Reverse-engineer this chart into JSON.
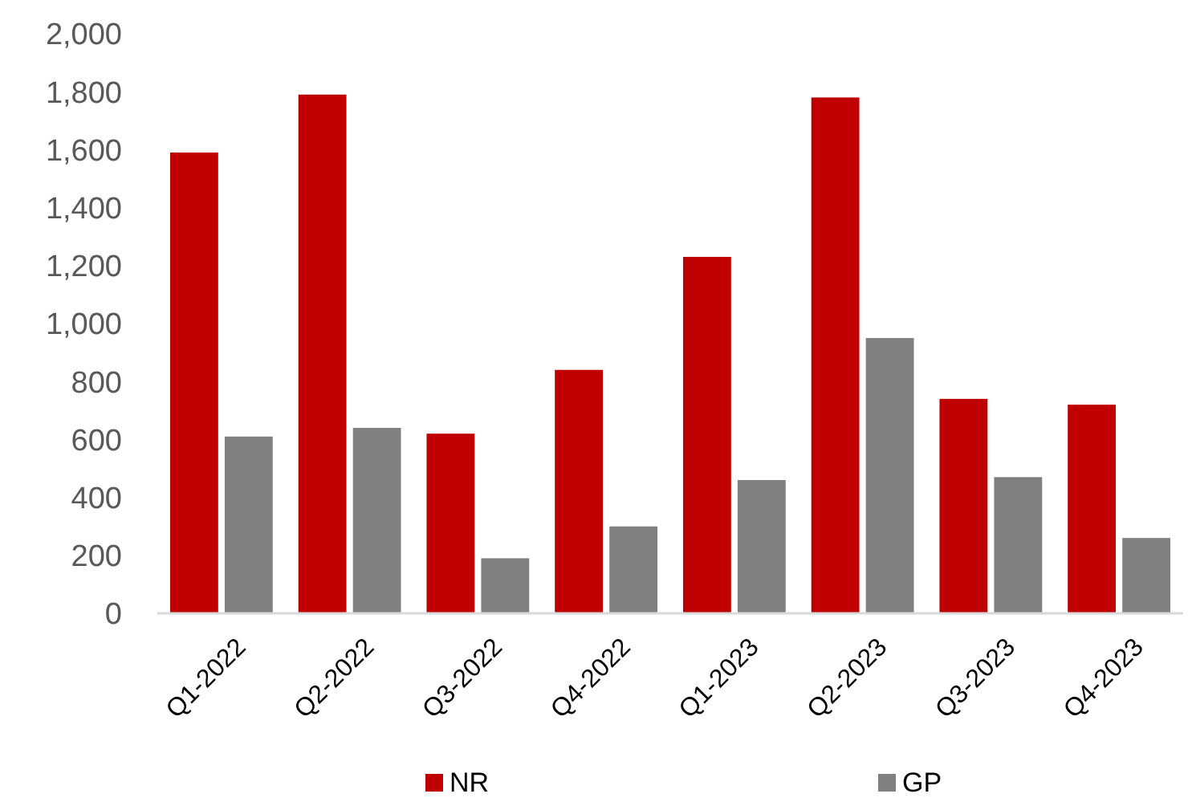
{
  "chart_data": {
    "type": "bar",
    "categories": [
      "Q1-2022",
      "Q2-2022",
      "Q3-2022",
      "Q4-2022",
      "Q1-2023",
      "Q2-2023",
      "Q3-2023",
      "Q4-2023"
    ],
    "series": [
      {
        "name": "NR",
        "color": "#c00000",
        "values": [
          1590,
          1790,
          620,
          840,
          1230,
          1780,
          740,
          720
        ]
      },
      {
        "name": "GP",
        "color": "#808080",
        "values": [
          610,
          640,
          190,
          300,
          460,
          950,
          470,
          260
        ]
      }
    ],
    "ylim": [
      0,
      2000
    ],
    "yticks": [
      {
        "value": 0,
        "label": "0"
      },
      {
        "value": 200,
        "label": "200"
      },
      {
        "value": 400,
        "label": "400"
      },
      {
        "value": 600,
        "label": "600"
      },
      {
        "value": 800,
        "label": "800"
      },
      {
        "value": 1000,
        "label": "1,000"
      },
      {
        "value": 1200,
        "label": "1,200"
      },
      {
        "value": 1400,
        "label": "1,400"
      },
      {
        "value": 1600,
        "label": "1,600"
      },
      {
        "value": 1800,
        "label": "1,800"
      },
      {
        "value": 2000,
        "label": "2,000"
      }
    ],
    "grid": false,
    "legend": "bottom"
  }
}
